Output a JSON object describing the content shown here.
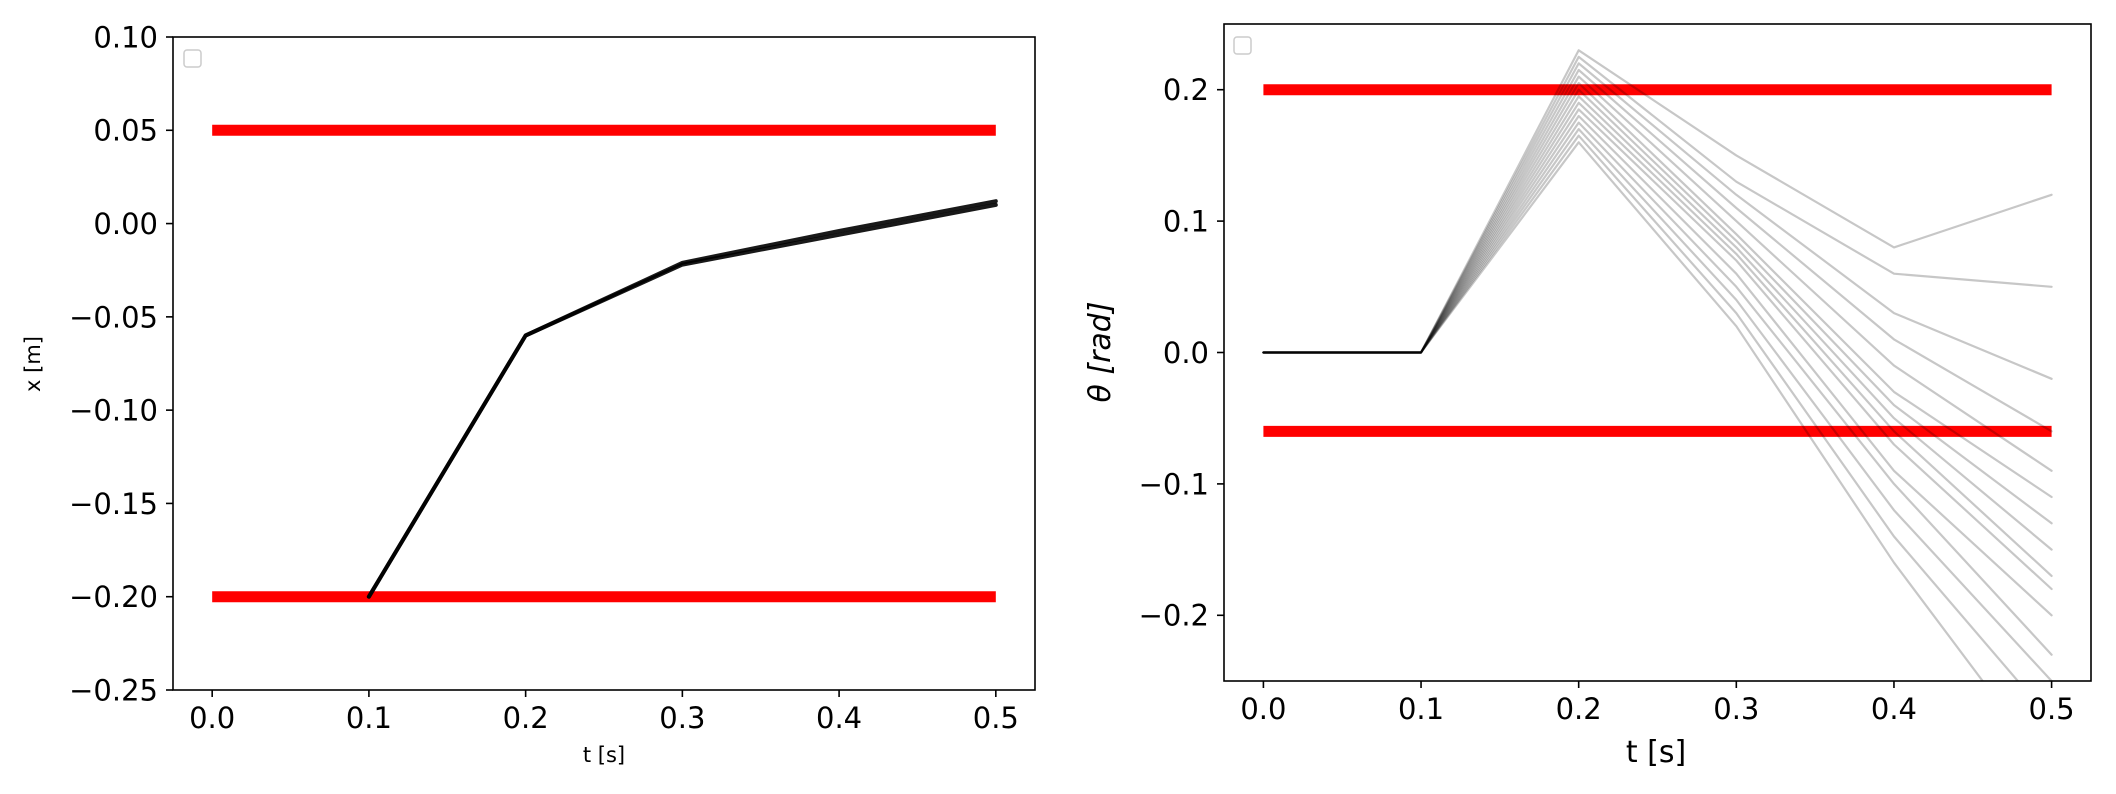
{
  "chart_data": [
    {
      "type": "line",
      "xlabel": "t [s]",
      "ylabel": "x [m]",
      "xlim": [
        -0.025,
        0.525
      ],
      "ylim": [
        -0.25,
        0.1
      ],
      "xticks": [
        0.0,
        0.1,
        0.2,
        0.3,
        0.4,
        0.5
      ],
      "xtick_labels": [
        "0.0",
        "0.1",
        "0.2",
        "0.3",
        "0.4",
        "0.5"
      ],
      "yticks": [
        0.1,
        0.05,
        0.0,
        -0.05,
        -0.1,
        -0.15,
        -0.2,
        -0.25
      ],
      "ytick_labels": [
        "0.10",
        "0.05",
        "0.00",
        "−0.05",
        "−0.10",
        "−0.15",
        "−0.20",
        "−0.25"
      ],
      "legend": "top-left, empty",
      "grid": false,
      "bounds": [
        {
          "x": [
            0.0,
            0.5
          ],
          "y": [
            0.05,
            0.05
          ],
          "color": "#ff0000"
        },
        {
          "x": [
            0.0,
            0.5
          ],
          "y": [
            -0.2,
            -0.2
          ],
          "color": "#ff0000"
        }
      ],
      "series": [
        {
          "x": [
            0.1,
            0.2,
            0.3,
            0.4,
            0.5
          ],
          "y": [
            -0.2,
            -0.06,
            -0.021,
            -0.004,
            0.012
          ],
          "color": "#000000"
        },
        {
          "x": [
            0.1,
            0.2,
            0.3,
            0.4,
            0.5
          ],
          "y": [
            -0.2,
            -0.06,
            -0.022,
            -0.006,
            0.01
          ],
          "color": "#000000"
        }
      ]
    },
    {
      "type": "line",
      "xlabel": "t [s]",
      "ylabel": "θ [rad]",
      "xlim": [
        -0.025,
        0.525
      ],
      "ylim": [
        -0.25,
        0.25
      ],
      "xticks": [
        0.0,
        0.1,
        0.2,
        0.3,
        0.4,
        0.5
      ],
      "xtick_labels": [
        "0.0",
        "0.1",
        "0.2",
        "0.3",
        "0.4",
        "0.5"
      ],
      "yticks": [
        0.2,
        0.1,
        0.0,
        -0.1,
        -0.2
      ],
      "ytick_labels": [
        "0.2",
        "0.1",
        "0.0",
        "−0.1",
        "−0.2"
      ],
      "legend": "top-left, empty",
      "grid": false,
      "bounds": [
        {
          "x": [
            0.0,
            0.5
          ],
          "y": [
            0.2,
            0.2
          ],
          "color": "#ff0000"
        },
        {
          "x": [
            0.0,
            0.5
          ],
          "y": [
            -0.06,
            -0.06
          ],
          "color": "#ff0000"
        }
      ],
      "series": [
        {
          "x": [
            0.0,
            0.1,
            0.2,
            0.3,
            0.4,
            0.5
          ],
          "y": [
            0.0,
            0.0,
            0.23,
            0.15,
            0.08,
            0.12
          ],
          "color": "#000000"
        },
        {
          "x": [
            0.0,
            0.1,
            0.2,
            0.3,
            0.4,
            0.5
          ],
          "y": [
            0.0,
            0.0,
            0.225,
            0.13,
            0.06,
            0.05
          ],
          "color": "#000000"
        },
        {
          "x": [
            0.0,
            0.1,
            0.2,
            0.3,
            0.4,
            0.5
          ],
          "y": [
            0.0,
            0.0,
            0.22,
            0.12,
            0.03,
            -0.02
          ],
          "color": "#000000"
        },
        {
          "x": [
            0.0,
            0.1,
            0.2,
            0.3,
            0.4,
            0.5
          ],
          "y": [
            0.0,
            0.0,
            0.215,
            0.11,
            0.01,
            -0.06
          ],
          "color": "#000000"
        },
        {
          "x": [
            0.0,
            0.1,
            0.2,
            0.3,
            0.4,
            0.5
          ],
          "y": [
            0.0,
            0.0,
            0.21,
            0.1,
            -0.01,
            -0.09
          ],
          "color": "#000000"
        },
        {
          "x": [
            0.0,
            0.1,
            0.2,
            0.3,
            0.4,
            0.5
          ],
          "y": [
            0.0,
            0.0,
            0.205,
            0.09,
            -0.03,
            -0.11
          ],
          "color": "#000000"
        },
        {
          "x": [
            0.0,
            0.1,
            0.2,
            0.3,
            0.4,
            0.5
          ],
          "y": [
            0.0,
            0.0,
            0.2,
            0.085,
            -0.04,
            -0.13
          ],
          "color": "#000000"
        },
        {
          "x": [
            0.0,
            0.1,
            0.2,
            0.3,
            0.4,
            0.5
          ],
          "y": [
            0.0,
            0.0,
            0.195,
            0.08,
            -0.05,
            -0.15
          ],
          "color": "#000000"
        },
        {
          "x": [
            0.0,
            0.1,
            0.2,
            0.3,
            0.4,
            0.5
          ],
          "y": [
            0.0,
            0.0,
            0.19,
            0.075,
            -0.06,
            -0.17
          ],
          "color": "#000000"
        },
        {
          "x": [
            0.0,
            0.1,
            0.2,
            0.3,
            0.4,
            0.5
          ],
          "y": [
            0.0,
            0.0,
            0.185,
            0.07,
            -0.07,
            -0.18
          ],
          "color": "#000000"
        },
        {
          "x": [
            0.0,
            0.1,
            0.2,
            0.3,
            0.4,
            0.5
          ],
          "y": [
            0.0,
            0.0,
            0.18,
            0.06,
            -0.09,
            -0.2
          ],
          "color": "#000000"
        },
        {
          "x": [
            0.0,
            0.1,
            0.2,
            0.3,
            0.4,
            0.5
          ],
          "y": [
            0.0,
            0.0,
            0.175,
            0.05,
            -0.1,
            -0.23
          ],
          "color": "#000000"
        },
        {
          "x": [
            0.0,
            0.1,
            0.2,
            0.3,
            0.4,
            0.5
          ],
          "y": [
            0.0,
            0.0,
            0.17,
            0.04,
            -0.12,
            -0.25
          ],
          "color": "#000000"
        },
        {
          "x": [
            0.0,
            0.1,
            0.2,
            0.3,
            0.4,
            0.5
          ],
          "y": [
            0.0,
            0.0,
            0.165,
            0.03,
            -0.14,
            -0.28
          ],
          "color": "#000000"
        },
        {
          "x": [
            0.0,
            0.1,
            0.2,
            0.3,
            0.4,
            0.5
          ],
          "y": [
            0.0,
            0.0,
            0.16,
            0.02,
            -0.16,
            -0.32
          ],
          "color": "#000000"
        }
      ]
    }
  ]
}
